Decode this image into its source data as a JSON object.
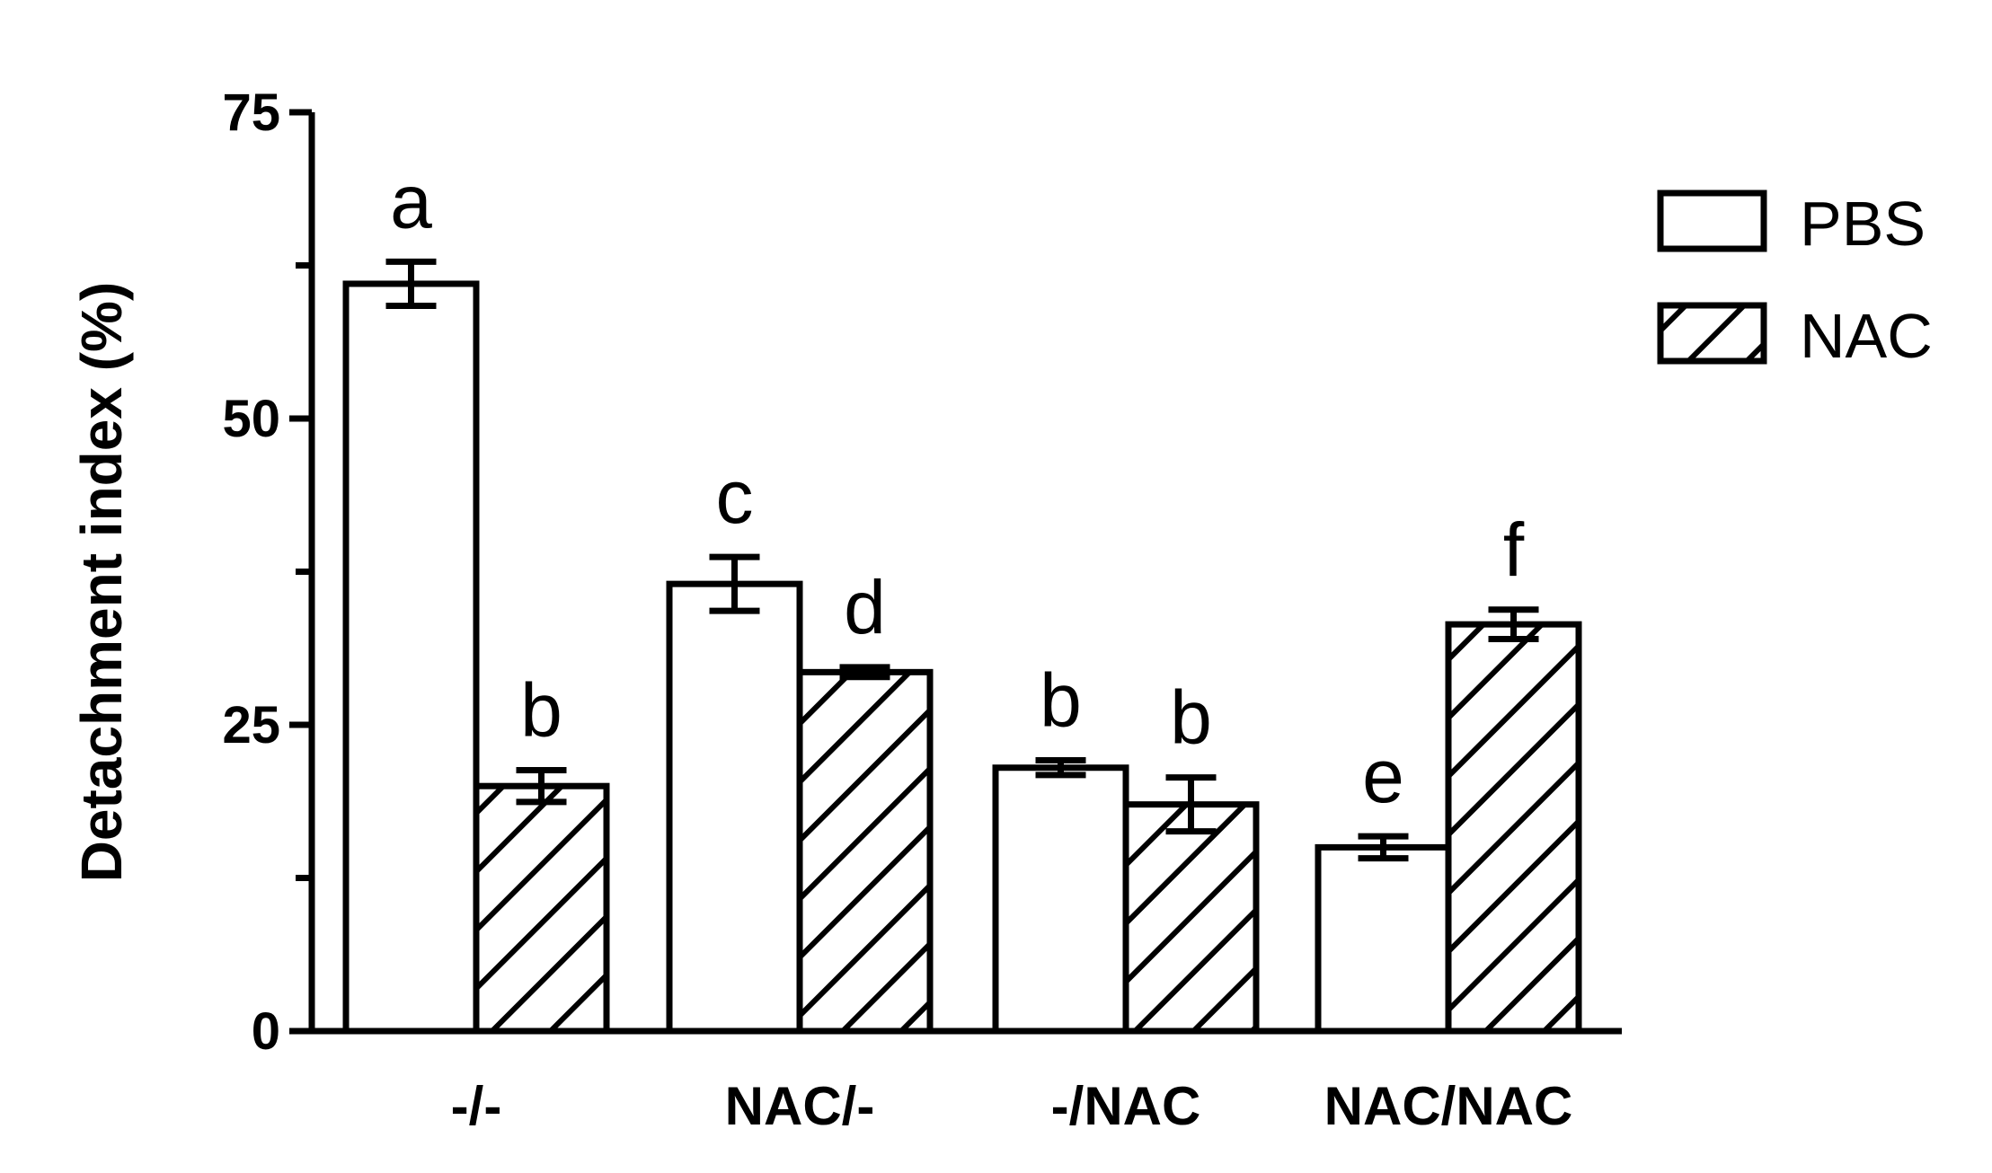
{
  "chart_data": {
    "type": "bar",
    "title": "",
    "xlabel": "",
    "ylabel": "Detachment index (%)",
    "ylim": [
      0,
      75
    ],
    "yticks": [
      0,
      25,
      50,
      75
    ],
    "categories": [
      "-/-",
      "NAC/-",
      "-/NAC",
      "NAC/NAC"
    ],
    "series": [
      {
        "name": "PBS",
        "fill": "white",
        "values": [
          61,
          36.5,
          21.5,
          15
        ],
        "errors": [
          1.8,
          2.2,
          0.6,
          0.9
        ],
        "labels": [
          "a",
          "c",
          "b",
          "e"
        ]
      },
      {
        "name": "NAC",
        "fill": "hatched",
        "values": [
          20,
          29.3,
          18.5,
          33.2
        ],
        "errors": [
          1.3,
          0.4,
          2.2,
          1.2
        ],
        "labels": [
          "b",
          "d",
          "b",
          "f"
        ]
      }
    ],
    "legend_position": "top-right",
    "grid": false,
    "colors": {
      "stroke": "#000000",
      "background": "#ffffff"
    }
  }
}
